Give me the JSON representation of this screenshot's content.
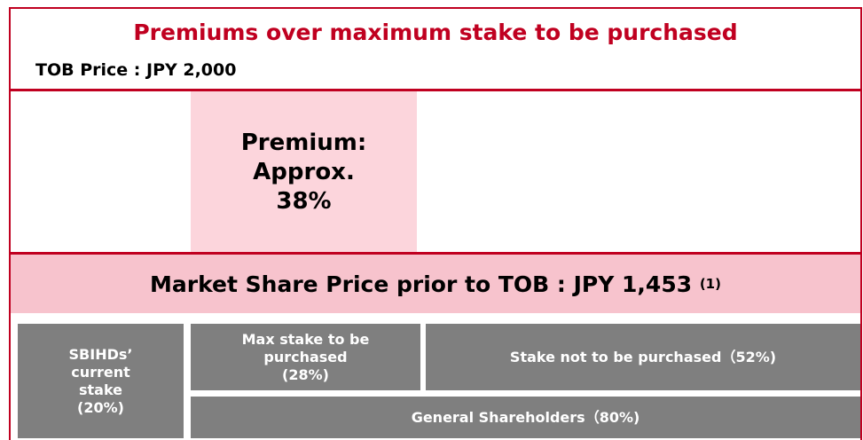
{
  "title": "Premiums over maximum stake to be purchased",
  "tob_price": "TOB Price : JPY 2,000",
  "premium": [
    "Premium:",
    "Approx.",
    "38%"
  ],
  "market_price": {
    "text": "Market Share Price prior to TOB : JPY 1,453",
    "note": "(1)"
  },
  "stakes": {
    "current": [
      "SBIHDs’",
      "current",
      "stake",
      "(20%)"
    ],
    "max_purchase": [
      "Max stake to be",
      "purchased",
      "(28%)"
    ],
    "not_purchased": "Stake not to be purchased（52%)",
    "general": "General Shareholders（80%)"
  }
}
